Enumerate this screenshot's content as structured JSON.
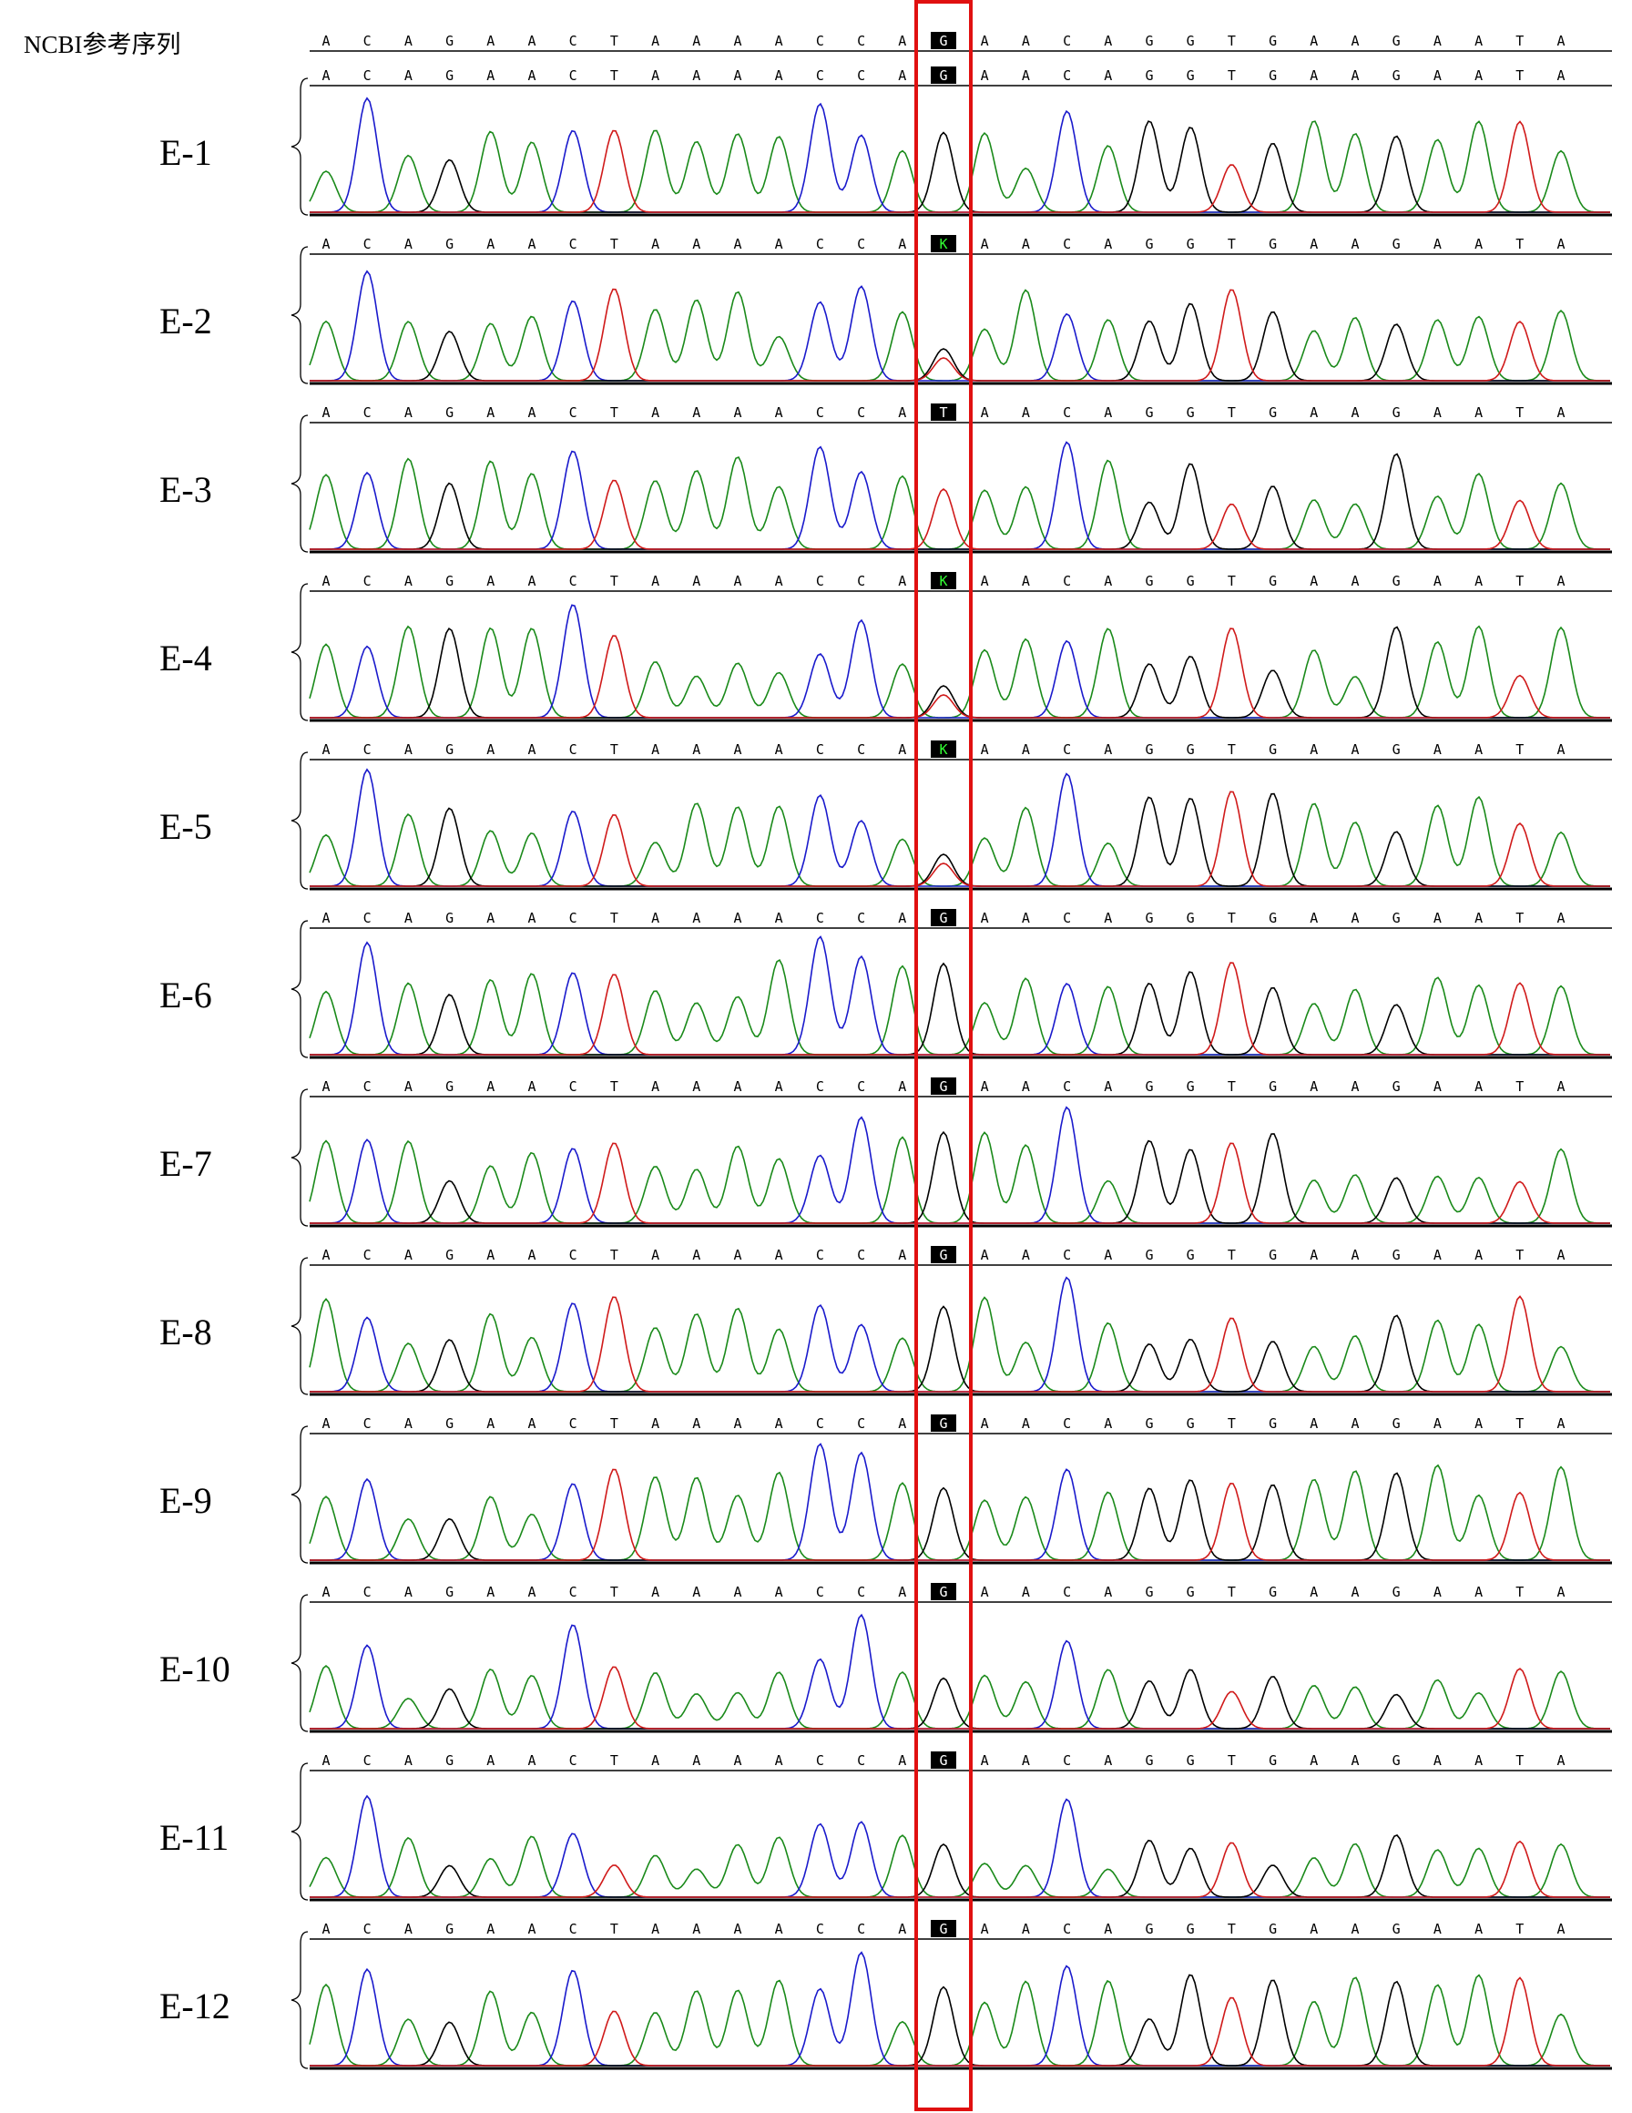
{
  "reference": {
    "label": "NCBI参考序列",
    "bases": [
      "A",
      "C",
      "A",
      "G",
      "A",
      "A",
      "C",
      "T",
      "A",
      "A",
      "A",
      "A",
      "C",
      "C",
      "A",
      "G",
      "A",
      "A",
      "C",
      "A",
      "G",
      "G",
      "T",
      "G",
      "A",
      "A",
      "G",
      "A",
      "A",
      "T",
      "A"
    ]
  },
  "samples": [
    {
      "label": "E-1",
      "bases": [
        "A",
        "C",
        "A",
        "G",
        "A",
        "A",
        "C",
        "T",
        "A",
        "A",
        "A",
        "A",
        "C",
        "C",
        "A",
        "G",
        "A",
        "A",
        "C",
        "A",
        "G",
        "G",
        "T",
        "G",
        "A",
        "A",
        "G",
        "A",
        "A",
        "T",
        "A"
      ]
    },
    {
      "label": "E-2",
      "bases": [
        "A",
        "C",
        "A",
        "G",
        "A",
        "A",
        "C",
        "T",
        "A",
        "A",
        "A",
        "A",
        "C",
        "C",
        "A",
        "K",
        "A",
        "A",
        "C",
        "A",
        "G",
        "G",
        "T",
        "G",
        "A",
        "A",
        "G",
        "A",
        "A",
        "T",
        "A"
      ]
    },
    {
      "label": "E-3",
      "bases": [
        "A",
        "C",
        "A",
        "G",
        "A",
        "A",
        "C",
        "T",
        "A",
        "A",
        "A",
        "A",
        "C",
        "C",
        "A",
        "T",
        "A",
        "A",
        "C",
        "A",
        "G",
        "G",
        "T",
        "G",
        "A",
        "A",
        "G",
        "A",
        "A",
        "T",
        "A"
      ]
    },
    {
      "label": "E-4",
      "bases": [
        "A",
        "C",
        "A",
        "G",
        "A",
        "A",
        "C",
        "T",
        "A",
        "A",
        "A",
        "A",
        "C",
        "C",
        "A",
        "K",
        "A",
        "A",
        "C",
        "A",
        "G",
        "G",
        "T",
        "G",
        "A",
        "A",
        "G",
        "A",
        "A",
        "T",
        "A"
      ]
    },
    {
      "label": "E-5",
      "bases": [
        "A",
        "C",
        "A",
        "G",
        "A",
        "A",
        "C",
        "T",
        "A",
        "A",
        "A",
        "A",
        "C",
        "C",
        "A",
        "K",
        "A",
        "A",
        "C",
        "A",
        "G",
        "G",
        "T",
        "G",
        "A",
        "A",
        "G",
        "A",
        "A",
        "T",
        "A"
      ]
    },
    {
      "label": "E-6",
      "bases": [
        "A",
        "C",
        "A",
        "G",
        "A",
        "A",
        "C",
        "T",
        "A",
        "A",
        "A",
        "A",
        "C",
        "C",
        "A",
        "G",
        "A",
        "A",
        "C",
        "A",
        "G",
        "G",
        "T",
        "G",
        "A",
        "A",
        "G",
        "A",
        "A",
        "T",
        "A"
      ]
    },
    {
      "label": "E-7",
      "bases": [
        "A",
        "C",
        "A",
        "G",
        "A",
        "A",
        "C",
        "T",
        "A",
        "A",
        "A",
        "A",
        "C",
        "C",
        "A",
        "G",
        "A",
        "A",
        "C",
        "A",
        "G",
        "G",
        "T",
        "G",
        "A",
        "A",
        "G",
        "A",
        "A",
        "T",
        "A"
      ]
    },
    {
      "label": "E-8",
      "bases": [
        "A",
        "C",
        "A",
        "G",
        "A",
        "A",
        "C",
        "T",
        "A",
        "A",
        "A",
        "A",
        "C",
        "C",
        "A",
        "G",
        "A",
        "A",
        "C",
        "A",
        "G",
        "G",
        "T",
        "G",
        "A",
        "A",
        "G",
        "A",
        "A",
        "T",
        "A"
      ]
    },
    {
      "label": "E-9",
      "bases": [
        "A",
        "C",
        "A",
        "G",
        "A",
        "A",
        "C",
        "T",
        "A",
        "A",
        "A",
        "A",
        "C",
        "C",
        "A",
        "G",
        "A",
        "A",
        "C",
        "A",
        "G",
        "G",
        "T",
        "G",
        "A",
        "A",
        "G",
        "A",
        "A",
        "T",
        "A"
      ]
    },
    {
      "label": "E-10",
      "bases": [
        "A",
        "C",
        "A",
        "G",
        "A",
        "A",
        "C",
        "T",
        "A",
        "A",
        "A",
        "A",
        "C",
        "C",
        "A",
        "G",
        "A",
        "A",
        "C",
        "A",
        "G",
        "G",
        "T",
        "G",
        "A",
        "A",
        "G",
        "A",
        "A",
        "T",
        "A"
      ]
    },
    {
      "label": "E-11",
      "bases": [
        "A",
        "C",
        "A",
        "G",
        "A",
        "A",
        "C",
        "T",
        "A",
        "A",
        "A",
        "A",
        "C",
        "C",
        "A",
        "G",
        "A",
        "A",
        "C",
        "A",
        "G",
        "G",
        "T",
        "G",
        "A",
        "A",
        "G",
        "A",
        "A",
        "T",
        "A"
      ]
    },
    {
      "label": "E-12",
      "bases": [
        "A",
        "C",
        "A",
        "G",
        "A",
        "A",
        "C",
        "T",
        "A",
        "A",
        "A",
        "A",
        "C",
        "C",
        "A",
        "G",
        "A",
        "A",
        "C",
        "A",
        "G",
        "G",
        "T",
        "G",
        "A",
        "A",
        "G",
        "A",
        "A",
        "T",
        "A"
      ]
    }
  ]
}
